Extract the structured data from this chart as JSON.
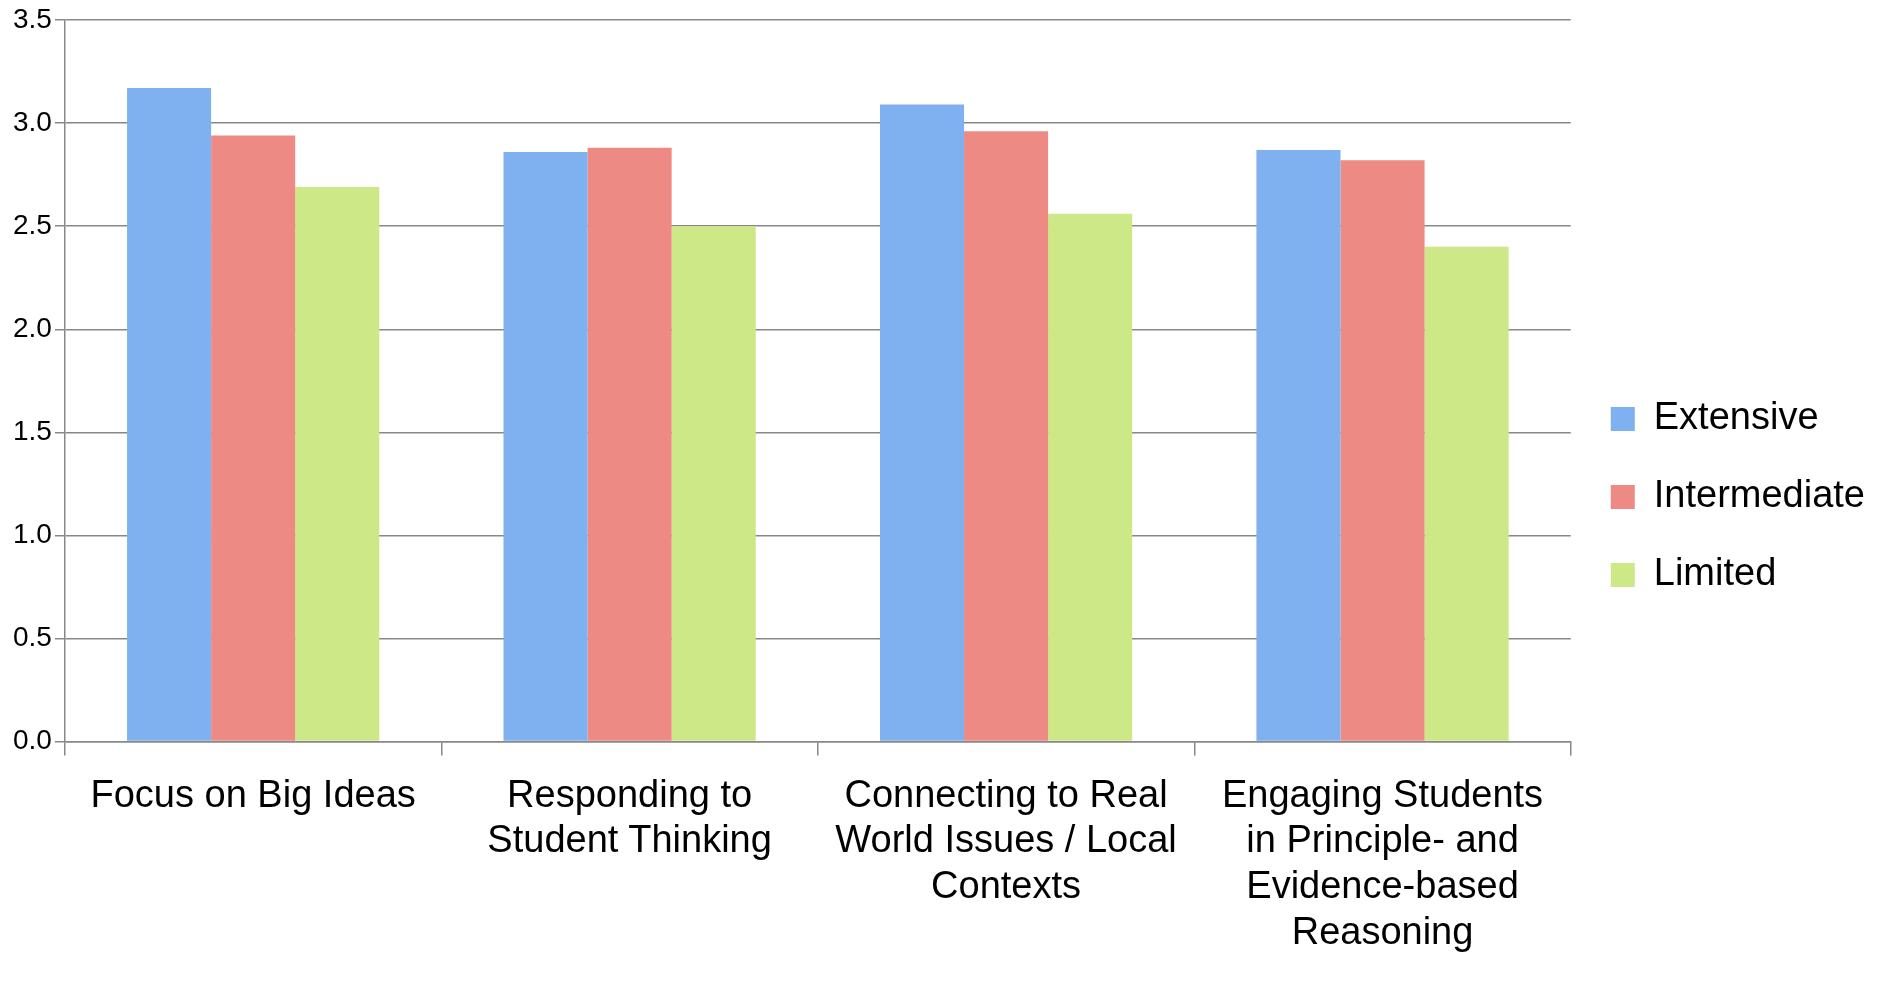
{
  "chart_data": {
    "type": "bar",
    "categories": [
      "Focus on Big Ideas",
      "Responding to Student Thinking",
      "Connecting to Real World Issues / Local Contexts",
      "Engaging Students in Principle- and Evidence-based Reasoning"
    ],
    "series": [
      {
        "name": "Extensive",
        "color": "#7fb0ef",
        "values": [
          3.17,
          2.86,
          3.09,
          2.87
        ]
      },
      {
        "name": "Intermediate",
        "color": "#ee8a84",
        "values": [
          2.94,
          2.88,
          2.96,
          2.82
        ]
      },
      {
        "name": "Limited",
        "color": "#cde887",
        "values": [
          2.69,
          2.5,
          2.56,
          2.4
        ]
      }
    ],
    "ylim": [
      0,
      3.5
    ],
    "yticks": [
      {
        "value": 0,
        "label": "0.0"
      },
      {
        "value": 0.5,
        "label": "0.5"
      },
      {
        "value": 1,
        "label": "1.0"
      },
      {
        "value": 1.5,
        "label": "1.5"
      },
      {
        "value": 2,
        "label": "2.0"
      },
      {
        "value": 2.5,
        "label": "2.5"
      },
      {
        "value": 3,
        "label": "3.0"
      },
      {
        "value": 3.5,
        "label": "3.5"
      }
    ],
    "grid": "y",
    "legend": "right"
  }
}
